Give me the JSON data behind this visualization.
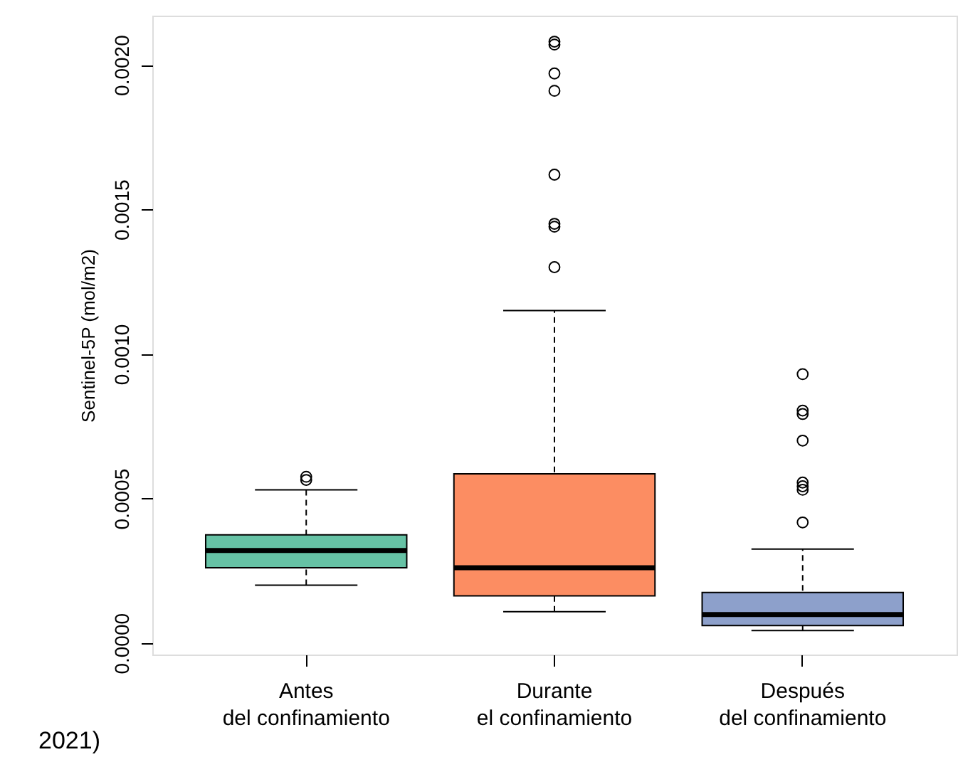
{
  "chart_data": {
    "type": "box",
    "ylabel": "Sentinel-5P (mol/m2)",
    "categories": [
      "Antes\ndel confinamiento",
      "Durante\nel confinamiento",
      "Después\ndel confinamiento"
    ],
    "colors": [
      "#66c2a5",
      "#fc8d62",
      "#8da0cb"
    ],
    "boxes": [
      {
        "low": 0.0002,
        "q1": 0.00026,
        "median": 0.00032,
        "q3": 0.000374,
        "high": 0.00053,
        "outliers": [
          0.000575,
          0.000564
        ]
      },
      {
        "low": 0.000108,
        "q1": 0.000163,
        "median": 0.00026,
        "q3": 0.000585,
        "high": 0.00115,
        "outliers": [
          0.00208,
          0.00207,
          0.00197,
          0.00191,
          0.00162,
          0.00145,
          0.00144,
          0.0013
        ]
      },
      {
        "low": 4.3e-05,
        "q1": 6e-05,
        "median": 9.85e-05,
        "q3": 0.000175,
        "high": 0.000325,
        "outliers": [
          0.00093,
          0.000804,
          0.000792,
          0.0007,
          0.000555,
          0.000542,
          0.00053,
          0.000417
        ]
      }
    ],
    "ylim": [
      -4e-05,
      0.00217
    ],
    "yticks": [
      {
        "value": 0,
        "label": "0.0000"
      },
      {
        "value": 0.0005,
        "label": "0.0005"
      },
      {
        "value": 0.001,
        "label": "0.0010"
      },
      {
        "value": 0.0015,
        "label": "0.0015"
      },
      {
        "value": 0.002,
        "label": "0.0020"
      }
    ],
    "grid": false,
    "annotations": [
      "2021)"
    ]
  }
}
